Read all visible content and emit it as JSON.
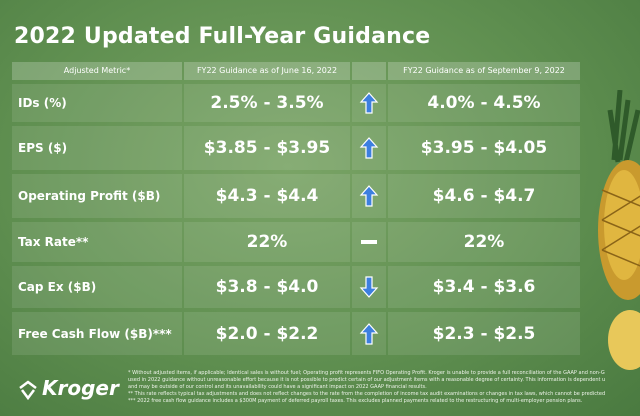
{
  "title": "2022 Updated Full-Year Guidance",
  "logo": "Kroger",
  "table": {
    "header": [
      "Adjusted Metric*",
      "FY22 Guidance as of June 16, 2022",
      "FY22 Guidance as of September 9, 2022"
    ],
    "rows": [
      [
        "IDs (%)",
        "2.5% - 3.5%",
        "4.0% - 4.5%"
      ],
      [
        "EPS ($)",
        "$3.85 - $3.95",
        "$3.95 - $4.05"
      ],
      [
        "Operating Profit ($B)",
        "$4.3 - $4.4",
        "$4.6 - $4.7"
      ],
      [
        "Tax Rate**",
        "22%",
        "22%"
      ],
      [
        "Cap Ex ($B)",
        "$3.8 - $4.0",
        "$3.4 - $3.6"
      ],
      [
        "Free Cash Flow ($B)***",
        "$2.0 - $2.2",
        "$2.3 - $2.5"
      ]
    ]
  },
  "footnotes": [
    "* Without adjusted items, if applicable; Identical sales is without fuel; Operating profit represents FIFO Operating Profit. Kroger is unable to provide a full reconciliation of the GAAP and non-G",
    "used in 2022 guidance without unreasonable effort because it is not possible to predict certain of our adjustment items with a reasonable degree of certainty. This information is dependent u",
    "and may be outside of our control and its unavailability could have a significant impact on 2022 GAAP financial results.",
    "** This rate reflects typical tax adjustments and does not reflect changes to the rate from the completion of income tax audit examinations or changes in tax laws, which cannot be predicted",
    "*** 2022 free cash flow guidance includes a $300M payment of deferred payroll taxes. This excludes planned payments related to the restructuring of multi-employer pension plans."
  ]
}
